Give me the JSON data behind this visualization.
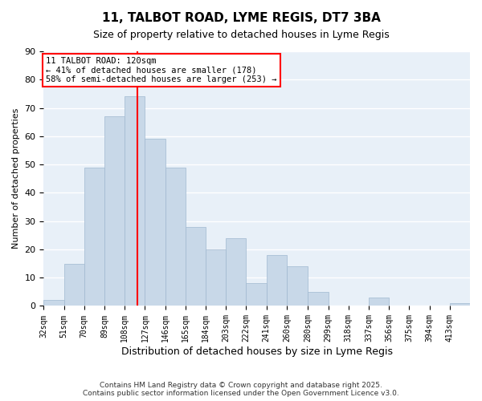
{
  "title": "11, TALBOT ROAD, LYME REGIS, DT7 3BA",
  "subtitle": "Size of property relative to detached houses in Lyme Regis",
  "xlabel": "Distribution of detached houses by size in Lyme Regis",
  "ylabel": "Number of detached properties",
  "bar_color": "#c8d8e8",
  "bar_edge_color": "#a0b8d0",
  "bg_color": "#e8f0f8",
  "grid_color": "white",
  "vline_x": 120,
  "vline_color": "red",
  "annotation_line1": "11 TALBOT ROAD: 120sqm",
  "annotation_line2": "← 41% of detached houses are smaller (178)",
  "annotation_line3": "58% of semi-detached houses are larger (253) →",
  "footnote1": "Contains HM Land Registry data © Crown copyright and database right 2025.",
  "footnote2": "Contains public sector information licensed under the Open Government Licence v3.0.",
  "bin_labels": [
    "32sqm",
    "51sqm",
    "70sqm",
    "89sqm",
    "108sqm",
    "127sqm",
    "146sqm",
    "165sqm",
    "184sqm",
    "203sqm",
    "222sqm",
    "241sqm",
    "260sqm",
    "280sqm",
    "299sqm",
    "318sqm",
    "337sqm",
    "356sqm",
    "375sqm",
    "394sqm",
    "413sqm"
  ],
  "bin_edges": [
    32,
    51,
    70,
    89,
    108,
    127,
    146,
    165,
    184,
    203,
    222,
    241,
    260,
    280,
    299,
    318,
    337,
    356,
    375,
    394,
    413,
    432
  ],
  "bar_heights": [
    2,
    15,
    49,
    67,
    74,
    59,
    49,
    28,
    20,
    24,
    8,
    18,
    14,
    5,
    0,
    0,
    3,
    0,
    0,
    0,
    1
  ],
  "ylim": [
    0,
    90
  ],
  "yticks": [
    0,
    10,
    20,
    30,
    40,
    50,
    60,
    70,
    80,
    90
  ]
}
